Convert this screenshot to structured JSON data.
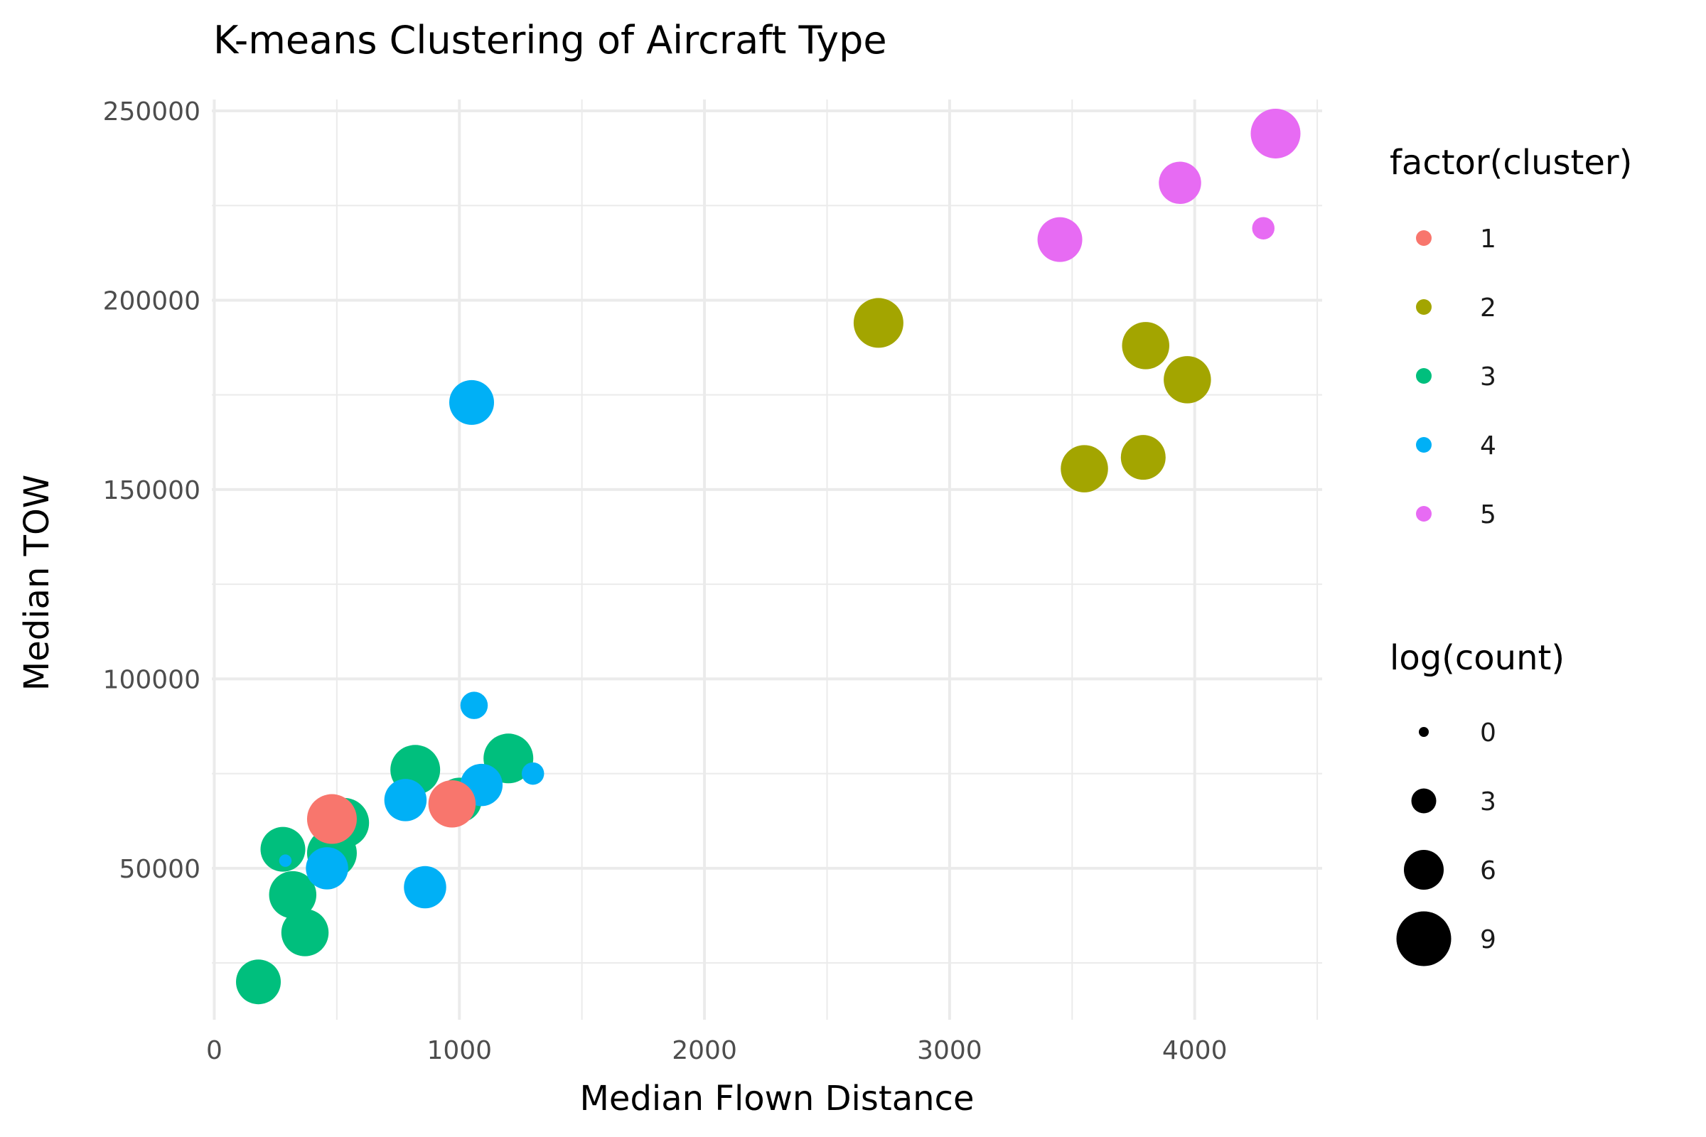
{
  "chart_data": {
    "type": "scatter",
    "title": "K-means Clustering of Aircraft Type",
    "xlabel": "Median Flown Distance",
    "ylabel": "Median TOW",
    "xlim": [
      -10,
      4520
    ],
    "ylim": [
      10000,
      253000
    ],
    "x_ticks": [
      0,
      1000,
      2000,
      3000,
      4000
    ],
    "x_tick_labels": [
      "0",
      "1000",
      "2000",
      "3000",
      "4000"
    ],
    "y_ticks": [
      50000,
      100000,
      150000,
      200000,
      250000
    ],
    "y_tick_labels": [
      "50000",
      "100000",
      "150000",
      "200000",
      "250000"
    ],
    "grid": true,
    "legend_position": "right",
    "color_legend": {
      "title": "factor(cluster)",
      "entries": [
        {
          "label": "1",
          "color": "#F8766D"
        },
        {
          "label": "2",
          "color": "#A3A500"
        },
        {
          "label": "3",
          "color": "#00BF7D"
        },
        {
          "label": "4",
          "color": "#00B0F6"
        },
        {
          "label": "5",
          "color": "#E76BF3"
        }
      ]
    },
    "size_legend": {
      "title": "log(count)",
      "entries": [
        {
          "label": "0",
          "value": 0
        },
        {
          "label": "3",
          "value": 3
        },
        {
          "label": "6",
          "value": 6
        },
        {
          "label": "9",
          "value": 9
        }
      ]
    },
    "points": [
      {
        "x": 180,
        "y": 20000,
        "cluster": "3",
        "size": 7
      },
      {
        "x": 370,
        "y": 33000,
        "cluster": "3",
        "size": 7.5
      },
      {
        "x": 320,
        "y": 43000,
        "cluster": "3",
        "size": 7.5
      },
      {
        "x": 280,
        "y": 55000,
        "cluster": "3",
        "size": 7
      },
      {
        "x": 530,
        "y": 62000,
        "cluster": "3",
        "size": 8
      },
      {
        "x": 480,
        "y": 54000,
        "cluster": "3",
        "size": 8
      },
      {
        "x": 820,
        "y": 76000,
        "cluster": "3",
        "size": 8
      },
      {
        "x": 1200,
        "y": 79000,
        "cluster": "3",
        "size": 8
      },
      {
        "x": 1000,
        "y": 68000,
        "cluster": "3",
        "size": 7
      },
      {
        "x": 290,
        "y": 52000,
        "cluster": "4",
        "size": 0.5
      },
      {
        "x": 460,
        "y": 50000,
        "cluster": "4",
        "size": 6.5
      },
      {
        "x": 470,
        "y": 65000,
        "cluster": "4",
        "size": 2.5
      },
      {
        "x": 860,
        "y": 45000,
        "cluster": "4",
        "size": 6.5
      },
      {
        "x": 780,
        "y": 68000,
        "cluster": "4",
        "size": 6.5
      },
      {
        "x": 1090,
        "y": 72000,
        "cluster": "4",
        "size": 6.5
      },
      {
        "x": 1060,
        "y": 93000,
        "cluster": "4",
        "size": 3.5
      },
      {
        "x": 1300,
        "y": 75000,
        "cluster": "4",
        "size": 2.5
      },
      {
        "x": 1050,
        "y": 173000,
        "cluster": "4",
        "size": 7
      },
      {
        "x": 480,
        "y": 63000,
        "cluster": "1",
        "size": 8
      },
      {
        "x": 970,
        "y": 67000,
        "cluster": "1",
        "size": 7.5
      },
      {
        "x": 2710,
        "y": 194000,
        "cluster": "2",
        "size": 8
      },
      {
        "x": 3800,
        "y": 188000,
        "cluster": "2",
        "size": 7.5
      },
      {
        "x": 3970,
        "y": 179000,
        "cluster": "2",
        "size": 7.5
      },
      {
        "x": 3790,
        "y": 158500,
        "cluster": "2",
        "size": 7
      },
      {
        "x": 3550,
        "y": 155500,
        "cluster": "2",
        "size": 7.5
      },
      {
        "x": 4330,
        "y": 244000,
        "cluster": "5",
        "size": 8
      },
      {
        "x": 3940,
        "y": 231000,
        "cluster": "5",
        "size": 6.5
      },
      {
        "x": 3450,
        "y": 216000,
        "cluster": "5",
        "size": 7
      },
      {
        "x": 4280,
        "y": 219000,
        "cluster": "5",
        "size": 2.5
      }
    ]
  }
}
